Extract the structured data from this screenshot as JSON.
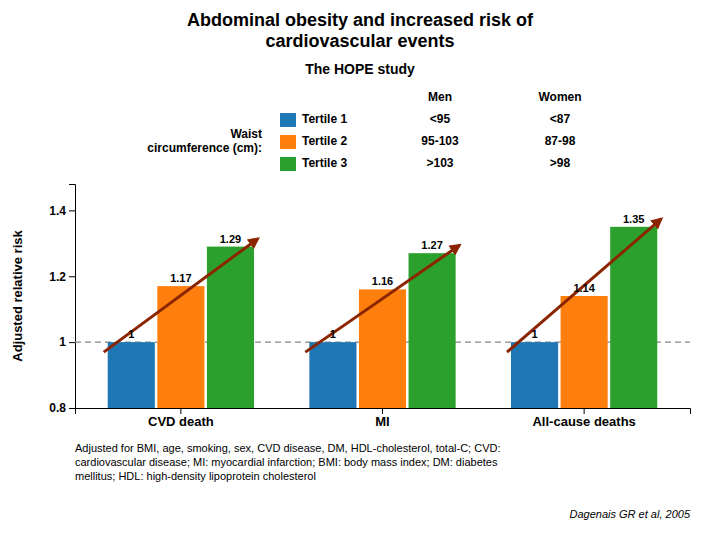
{
  "chart_data": {
    "type": "bar",
    "title": "Abdominal obesity and increased risk of\ncardiovascular events",
    "subtitle": "The HOPE study",
    "y_label": "Adjusted relative risk",
    "categories": [
      "CVD death",
      "MI",
      "All-cause deaths"
    ],
    "series": [
      {
        "name": "Tertile 1",
        "values": [
          1.0,
          1.0,
          1.0
        ]
      },
      {
        "name": "Tertile 2",
        "values": [
          1.17,
          1.16,
          1.14
        ]
      },
      {
        "name": "Tertile 3",
        "values": [
          1.29,
          1.27,
          1.35
        ]
      }
    ],
    "ylim": [
      0.8,
      1.48
    ],
    "yticks": [
      0.8,
      1,
      1.2,
      1.4
    ],
    "grid": false,
    "data_labels": true,
    "legend": "top",
    "legend_table": {
      "label": "Waist\ncircumference (cm):",
      "columns": [
        {
          "header": "Men",
          "values": [
            "<95",
            "95-103",
            ">103"
          ]
        },
        {
          "header": "Women",
          "values": [
            "<87",
            "87-98",
            ">98"
          ]
        }
      ]
    },
    "reference_line": {
      "value": 1,
      "line_style": "dashed"
    },
    "arrows": {
      "from": "Tertile 1",
      "to": "Tertile 3",
      "color": "#8B2500"
    },
    "footnote": "Adjusted for BMI, age, smoking, sex, CVD disease, DM, HDL-cholesterol, total-C; CVD:\ncardiovascular disease; MI: myocardial infarction; BMI: body mass index; DM: diabetes\nmellitus; HDL: high-density lipoprotein cholesterol",
    "citation": "Dagenais GR et al, 2005"
  }
}
